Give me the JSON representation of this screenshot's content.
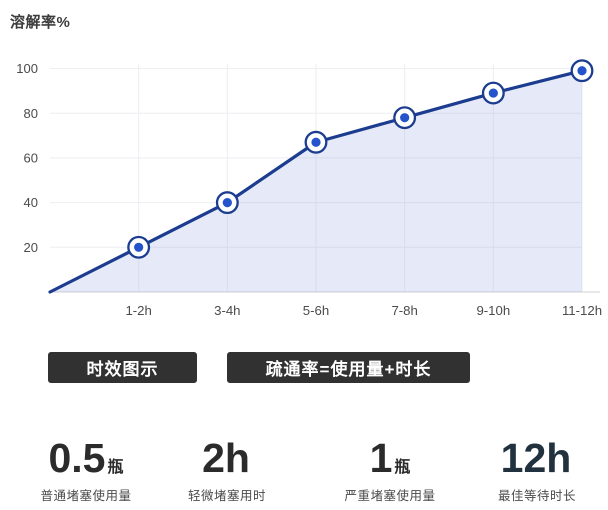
{
  "chart_data": {
    "type": "area",
    "title": "溶解率%",
    "categories": [
      "1-2h",
      "3-4h",
      "5-6h",
      "7-8h",
      "9-10h",
      "11-12h"
    ],
    "values": [
      20,
      40,
      67,
      78,
      89,
      99
    ],
    "start_value": 0,
    "y_ticks": [
      20,
      40,
      60,
      80,
      100
    ],
    "ylim": [
      0,
      105
    ],
    "grid": "on",
    "legend": "none",
    "colors": {
      "line": "#1c3d8f",
      "dot": "#2453cc",
      "marker_ring": "#ffffff",
      "area_fill": "rgba(122,146,219,0.19)",
      "grid": "#ededf2",
      "baseline": "#d9d9de",
      "tick_text": "#4b4b4b"
    }
  },
  "badges": [
    {
      "label": "时效图示"
    },
    {
      "label": "疏通率=使用量+时长"
    }
  ],
  "badge_style": {
    "bg": "#313131",
    "text": "#ffffff"
  },
  "stats": [
    {
      "value": "0.5",
      "unit": "瓶",
      "caption": "普通堵塞使用量",
      "value_color": "#2b2b2c"
    },
    {
      "value": "2h",
      "unit": "",
      "caption": "轻微堵塞用时",
      "value_color": "#2b2b2c"
    },
    {
      "value": "1",
      "unit": "瓶",
      "caption": "严重堵塞使用量",
      "value_color": "#2b2b2c"
    },
    {
      "value": "12h",
      "unit": "",
      "caption": "最佳等待时长",
      "value_color": "#22313e"
    }
  ]
}
